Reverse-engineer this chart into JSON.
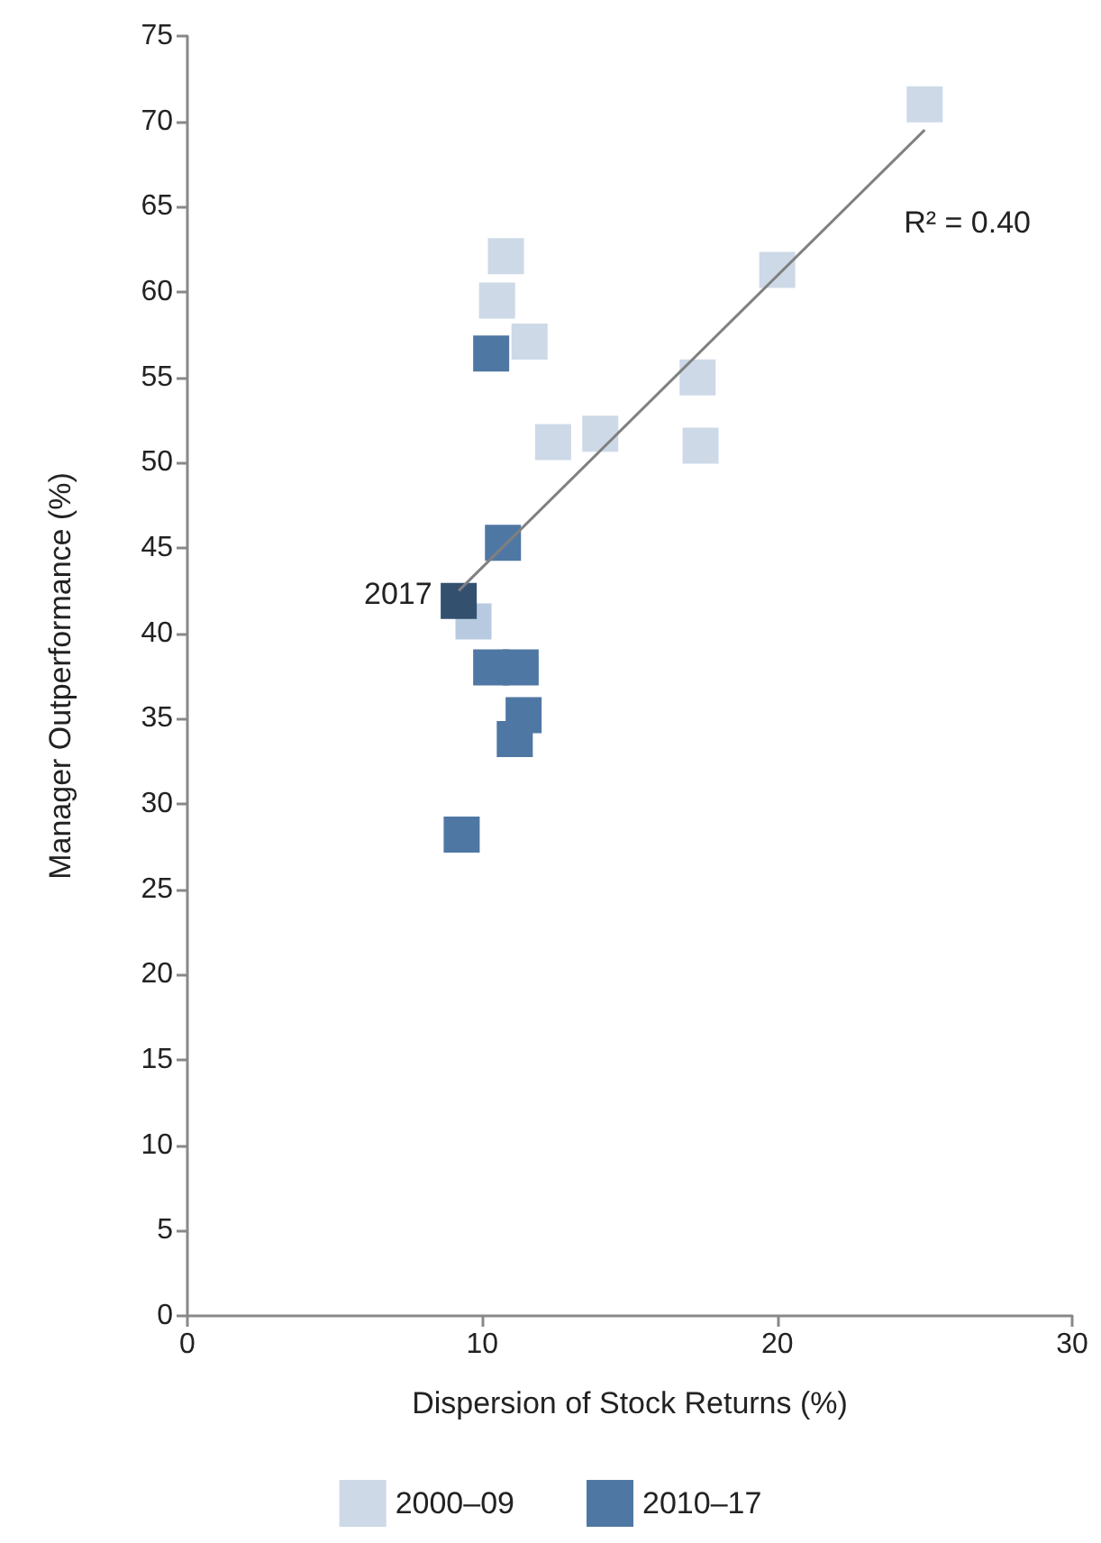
{
  "chart_data": {
    "type": "scatter",
    "xlabel": "Dispersion of Stock Returns (%)",
    "ylabel": "Manager Outperformance (%)",
    "xlim": [
      0,
      30
    ],
    "xticks": [
      0,
      10,
      20,
      30
    ],
    "ylim": [
      0,
      75
    ],
    "yticks": [
      0,
      5,
      10,
      15,
      20,
      25,
      30,
      35,
      40,
      45,
      50,
      55,
      60,
      65,
      70,
      75
    ],
    "grid": false,
    "legend": "bottom",
    "marker": "square",
    "annotations": [
      {
        "text": "2017",
        "x": 8.3,
        "y": 42.3
      },
      "R² = 0.40"
    ],
    "series": [
      {
        "name": "2000–09",
        "color": "#cdd9e7",
        "x": [
          25,
          20,
          10.8,
          10.5,
          11.6,
          17.3,
          12.4,
          14,
          17.4,
          9.7
        ],
        "values": [
          71,
          61.3,
          62.1,
          59.5,
          57.1,
          55,
          51.2,
          51.7,
          51,
          40.7
        ],
        "colors": [
          "#cdd9e7",
          "#cdd9e7",
          "#cdd9e7",
          "#cdd9e7",
          "#cdd9e7",
          "#cdd9e7",
          "#cdd9e7",
          "#cdd9e7",
          "#cdd9e7",
          "#b7cadf"
        ]
      },
      {
        "name": "2010–17",
        "color": "#4f77a3",
        "x": [
          10.3,
          10.7,
          9.2,
          10.3,
          11.3,
          11.4,
          11.1,
          9.3
        ],
        "values": [
          56.4,
          45.3,
          41.9,
          38,
          38,
          35.2,
          33.8,
          28.2
        ],
        "colors": [
          "#4f77a3",
          "#4f77a3",
          "#34506f",
          "#4f77a3",
          "#4f77a3",
          "#4f77a3",
          "#4f77a3",
          "#4f77a3"
        ]
      },
      {
        "type": "line",
        "color": "#808080",
        "marker": "none",
        "x": [
          9.2,
          25
        ],
        "values": [
          42.5,
          69.5
        ]
      }
    ]
  }
}
